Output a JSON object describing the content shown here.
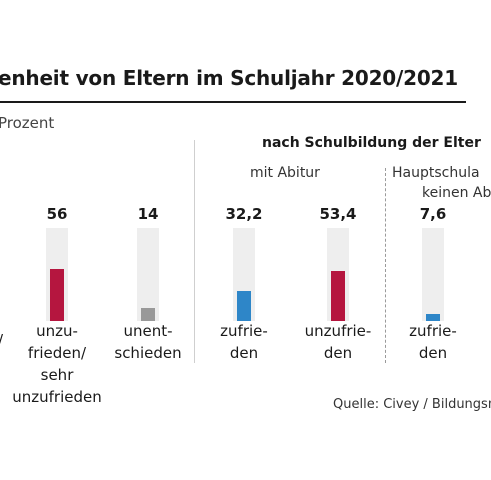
{
  "title": "enheit von Eltern im Schuljahr 2020/2021",
  "unit": "Prozent",
  "group_header": "nach Schulbildung der Elter",
  "subgroups": {
    "abitur": "mit Abitur",
    "haupt_line1": "Hauptschula",
    "haupt_line2": "keinen Ab"
  },
  "left_edge_glyph": "/",
  "source": "Quelle: Civey / Bildungsm",
  "chart_data": {
    "type": "bar",
    "ylim": [
      0,
      100
    ],
    "grid": false,
    "bars": [
      {
        "category": "unzu-\nfrieden/\nsehr\nunzufrieden",
        "value": 56,
        "label": "56",
        "color": "#b5163f",
        "center": 57
      },
      {
        "category": "unent-\nschieden",
        "value": 14,
        "label": "14",
        "color": "#999999",
        "center": 148
      },
      {
        "category": "zufrie-\nden",
        "value": 32.2,
        "label": "32,2",
        "color": "#2e86c8",
        "center": 244
      },
      {
        "category": "unzufrie-\nden",
        "value": 53.4,
        "label": "53,4",
        "color": "#b5163f",
        "center": 338
      },
      {
        "category": "zufrie-\nden",
        "value": 7.6,
        "label": "7,6",
        "color": "#2e86c8",
        "center": 433
      }
    ]
  }
}
